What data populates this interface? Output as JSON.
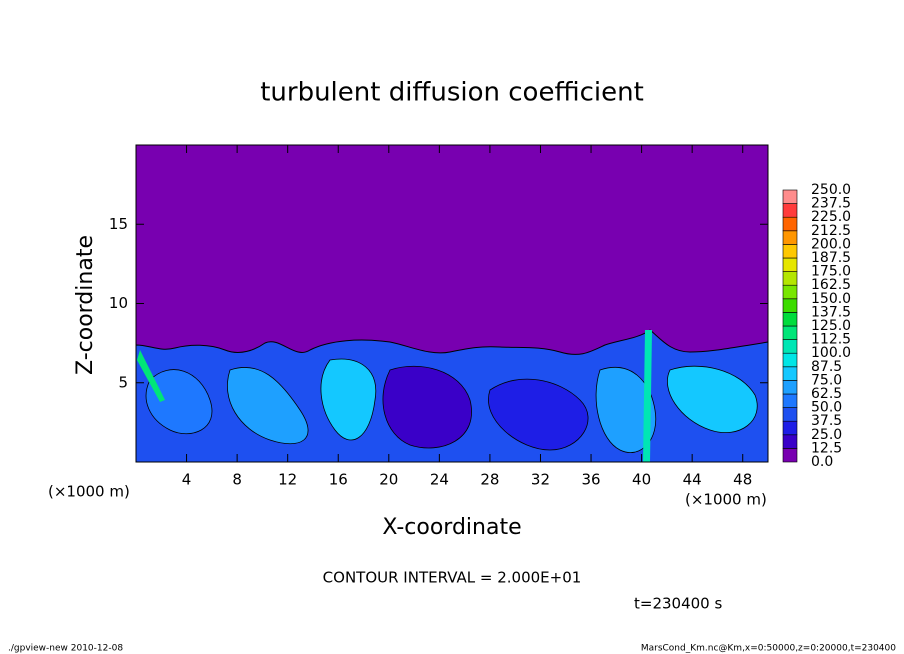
{
  "chart_data": {
    "type": "contour",
    "title": "turbulent diffusion coefficient",
    "xlabel": "X-coordinate",
    "ylabel": "Z-coordinate",
    "xunit": "(×1000 m)",
    "yunit": "(×1000 m)",
    "xlim": [
      0,
      50
    ],
    "ylim": [
      0,
      20
    ],
    "xticks": [
      4,
      8,
      12,
      16,
      20,
      24,
      28,
      32,
      36,
      40,
      44,
      48
    ],
    "yticks": [
      5,
      10,
      15
    ],
    "levels": [
      {
        "value": 0,
        "label": "0.0"
      },
      12.5,
      {
        "value": 25,
        "label": "25.0"
      },
      37.5,
      {
        "value": 50,
        "label": "50.0"
      },
      62.5,
      {
        "value": 75,
        "label": "75.0"
      },
      87.5,
      {
        "value": 100,
        "label": "100.0"
      },
      112.5,
      {
        "value": 125,
        "label": "125.0"
      },
      137.5,
      {
        "value": 150,
        "label": "150.0"
      },
      162.5,
      {
        "value": 175,
        "label": "175.0"
      },
      187.5,
      {
        "value": 200,
        "label": "200.0"
      },
      212.5,
      {
        "value": 225,
        "label": "225.0"
      },
      237.5,
      {
        "value": 250,
        "label": "250.0"
      }
    ],
    "colors": [
      "#7800b0",
      "#3a00c8",
      "#1e1ee6",
      "#1e50f0",
      "#1e78ff",
      "#1ea0ff",
      "#14c8ff",
      "#00e6e6",
      "#00e6b4",
      "#00e678",
      "#00dc3c",
      "#3cdc00",
      "#78e600",
      "#b4e600",
      "#e6e600",
      "#ffc800",
      "#ff9600",
      "#ff6400",
      "#ff3c3c",
      "#ff8c8c"
    ],
    "contour_interval": "CONTOUR INTERVAL = 2.000E+01",
    "time_label": "t=230400 s",
    "footer_left": "./gpview-new  2010-12-08",
    "footer_right": "MarsCond_Km.nc@Km,x=0:50000,z=0:20000,t=230400"
  }
}
